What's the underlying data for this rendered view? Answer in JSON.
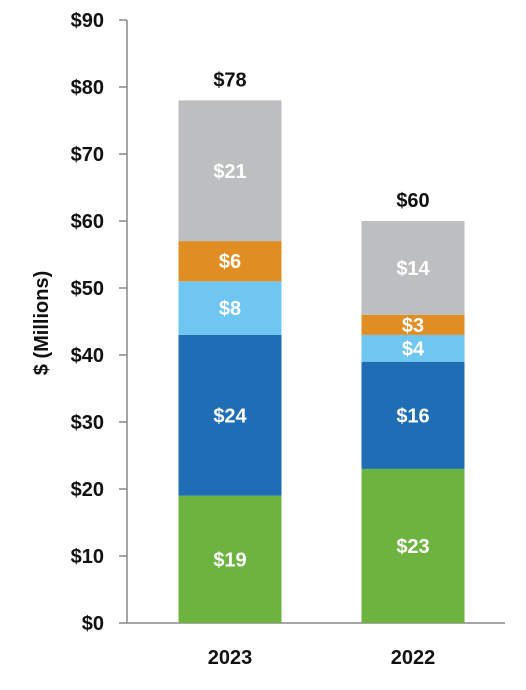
{
  "chart_data": {
    "type": "bar",
    "stacked": true,
    "ylabel": "$ (Millions)",
    "ylim": [
      0,
      90
    ],
    "yticks": [
      0,
      10,
      20,
      30,
      40,
      50,
      60,
      70,
      80,
      90
    ],
    "ytick_labels": [
      "$0",
      "$10",
      "$20",
      "$30",
      "$40",
      "$50",
      "$60",
      "$70",
      "$80",
      "$90"
    ],
    "categories": [
      "2023",
      "2022"
    ],
    "series": [
      {
        "values": [
          19,
          23
        ],
        "labels": [
          "$19",
          "$23"
        ],
        "color": "#6cb33f"
      },
      {
        "values": [
          24,
          16
        ],
        "labels": [
          "$24",
          "$16"
        ],
        "color": "#1f6db5"
      },
      {
        "values": [
          8,
          4
        ],
        "labels": [
          "$8",
          "$4"
        ],
        "color": "#6ec6f1"
      },
      {
        "values": [
          6,
          3
        ],
        "labels": [
          "$6",
          "$3"
        ],
        "color": "#e08e23"
      },
      {
        "values": [
          21,
          14
        ],
        "labels": [
          "$21",
          "$14"
        ],
        "color": "#bcbec0"
      }
    ],
    "totals": [
      78,
      60
    ],
    "total_labels": [
      "$78",
      "$60"
    ],
    "grid": false,
    "legend": "none"
  }
}
